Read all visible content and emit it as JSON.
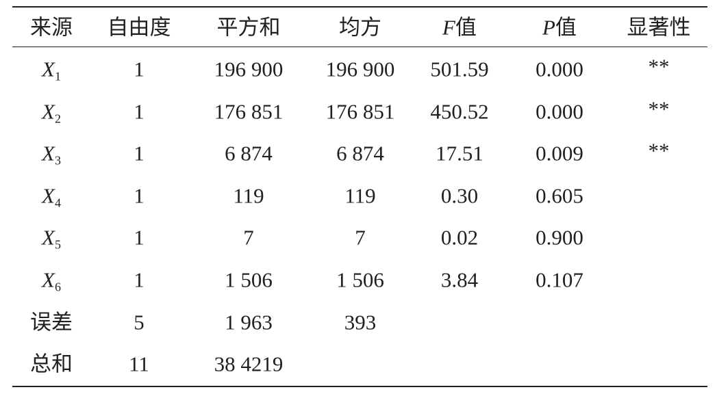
{
  "table": {
    "header": [
      "来源",
      "自由度",
      "平方和",
      "均方",
      {
        "symbol": "F",
        "text": "值"
      },
      {
        "symbol": "P",
        "text": "值"
      },
      "显著性"
    ],
    "rows": [
      [
        {
          "symbol": "X",
          "subscript": "1"
        },
        "1",
        "196 900",
        "196 900",
        "501.59",
        "0.000",
        "**"
      ],
      [
        {
          "symbol": "X",
          "subscript": "2"
        },
        "1",
        "176 851",
        "176 851",
        "450.52",
        "0.000",
        "**"
      ],
      [
        {
          "symbol": "X",
          "subscript": "3"
        },
        "1",
        "6 874",
        "6 874",
        "17.51",
        "0.009",
        "**"
      ],
      [
        {
          "symbol": "X",
          "subscript": "4"
        },
        "1",
        "119",
        "119",
        "0.30",
        "0.605"
      ],
      [
        {
          "symbol": "X",
          "subscript": "5"
        },
        "1",
        "7",
        "7",
        "0.02",
        "0.900"
      ],
      [
        {
          "symbol": "X",
          "subscript": "6"
        },
        "1",
        "1 506",
        "1 506",
        "3.84",
        "0.107"
      ],
      [
        "误差",
        "5",
        "1 963",
        "393"
      ],
      [
        "总和",
        "11",
        "38 4219"
      ]
    ]
  }
}
